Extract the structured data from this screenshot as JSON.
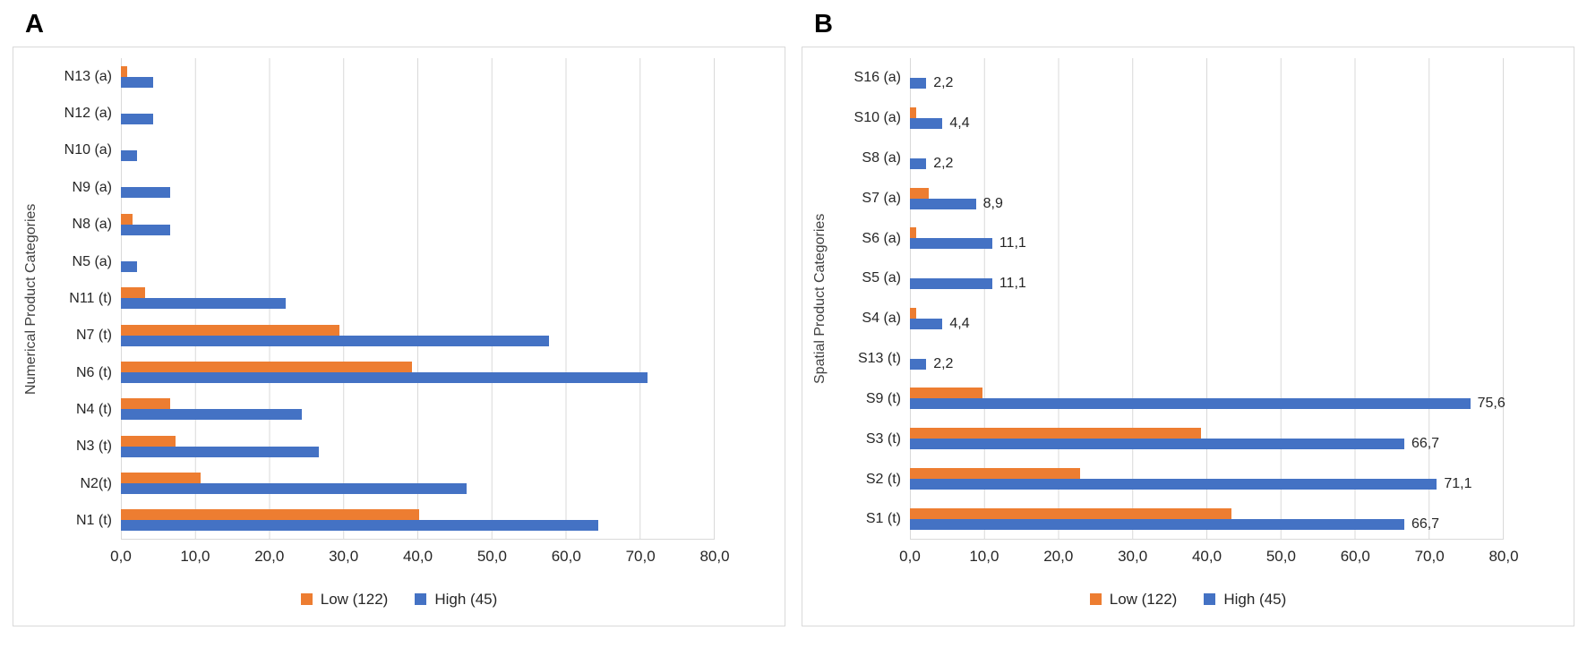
{
  "figure": {
    "legend_labels": [
      "Low (122)",
      "High (45)"
    ],
    "colors": {
      "low": "#ED7D31",
      "high": "#4472C4",
      "grid": "#D9D9D9"
    }
  },
  "chart_data": [
    {
      "type": "bar",
      "orientation": "horizontal",
      "panel_label": "A",
      "ylabel": "Numerical Product Categories",
      "xlabel": "",
      "xlim": [
        0,
        80
      ],
      "xticks": [
        "0,0",
        "10,0",
        "20,0",
        "30,0",
        "40,0",
        "50,0",
        "60,0",
        "70,0",
        "80,0"
      ],
      "grid": true,
      "legend_position": "bottom",
      "categories": [
        "N13 (a)",
        "N12 (a)",
        "N10 (a)",
        "N9 (a)",
        "N8 (a)",
        "N5 (a)",
        "N11 (t)",
        "N7 (t)",
        "N6 (t)",
        "N4 (t)",
        "N3 (t)",
        "N2(t)",
        "N1 (t)"
      ],
      "series": [
        {
          "name": "Low (122)",
          "color": "#ED7D31",
          "values": [
            0.8,
            0,
            0,
            0,
            1.6,
            0,
            3.3,
            29.5,
            39.3,
            6.6,
            7.4,
            10.7,
            40.2
          ]
        },
        {
          "name": "High (45)",
          "color": "#4472C4",
          "values": [
            4.4,
            4.4,
            2.2,
            6.7,
            6.7,
            2.2,
            22.2,
            57.8,
            71.1,
            24.4,
            26.7,
            46.7,
            64.4
          ]
        }
      ]
    },
    {
      "type": "bar",
      "orientation": "horizontal",
      "panel_label": "B",
      "ylabel": "Spatial Product Categories",
      "xlabel": "",
      "xlim": [
        0,
        80
      ],
      "xticks": [
        "0,0",
        "10,0",
        "20,0",
        "30,0",
        "40,0",
        "50,0",
        "60,0",
        "70,0",
        "80,0"
      ],
      "grid": true,
      "legend_position": "bottom",
      "categories": [
        "S16 (a)",
        "S10 (a)",
        "S8 (a)",
        "S7 (a)",
        "S6 (a)",
        "S5 (a)",
        "S4 (a)",
        "S13 (t)",
        "S9 (t)",
        "S3 (t)",
        "S2 (t)",
        "S1 (t)"
      ],
      "series": [
        {
          "name": "Low (122)",
          "color": "#ED7D31",
          "values": [
            0,
            0.8,
            0,
            2.5,
            0.8,
            0,
            0.8,
            0,
            9.8,
            39.3,
            23.0,
            43.4
          ]
        },
        {
          "name": "High (45)",
          "color": "#4472C4",
          "values": [
            2.2,
            4.4,
            2.2,
            8.9,
            11.1,
            11.1,
            4.4,
            2.2,
            75.6,
            66.7,
            71.1,
            66.7
          ],
          "data_labels": [
            "2,2",
            "4,4",
            "2,2",
            "8,9",
            "11,1",
            "11,1",
            "4,4",
            "2,2",
            "75,6",
            "66,7",
            "71,1",
            "66,7"
          ]
        }
      ]
    }
  ]
}
